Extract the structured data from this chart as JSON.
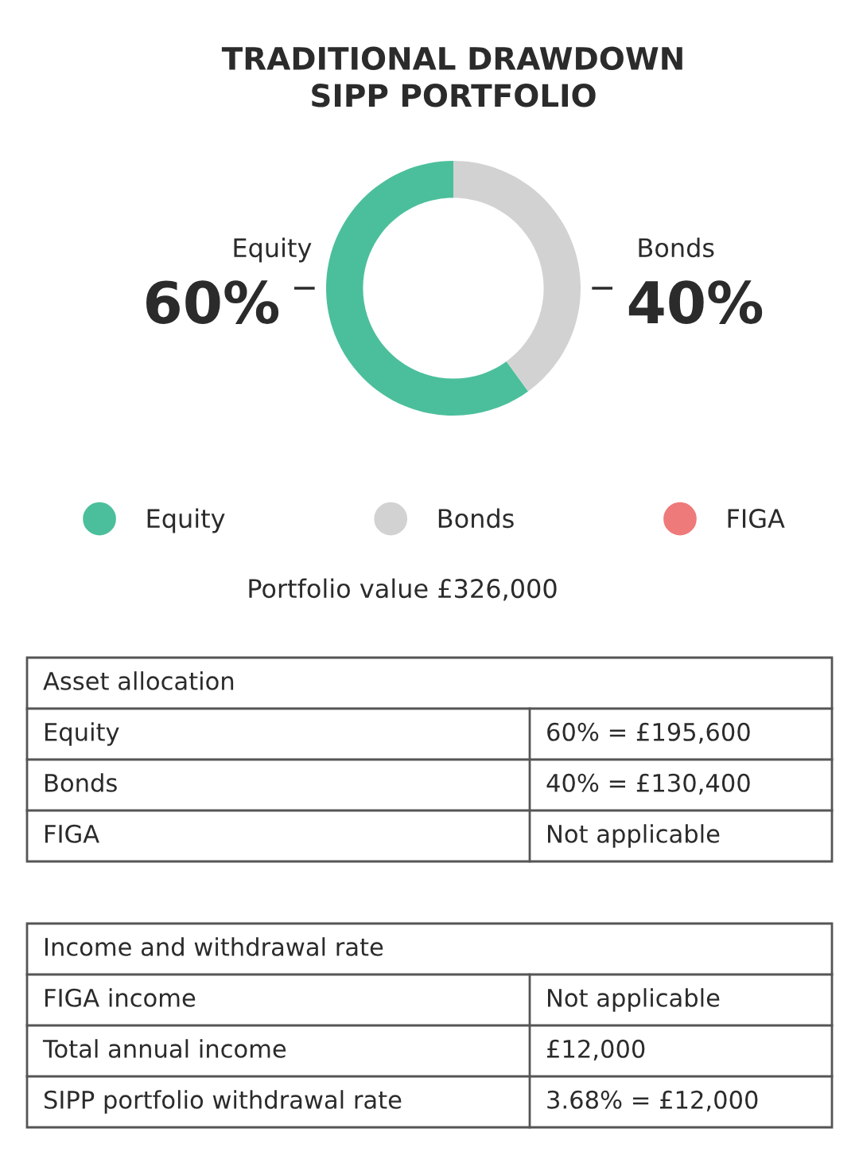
{
  "chart_data": [
    {
      "type": "donut",
      "title": "TRADITIONAL DRAWDOWN\nSIPP PORTFOLIO",
      "categories": [
        "Equity",
        "Bonds",
        "FIGA"
      ],
      "values": [
        60,
        40,
        0
      ],
      "colors": [
        "#4bbf9b",
        "#d3d2d2",
        "#ef7a7a"
      ],
      "value_labels": [
        "60%",
        "40%",
        null
      ],
      "legend": "bottom",
      "annotations": [
        "Portfolio value £326,000"
      ]
    },
    {
      "type": "other",
      "title": "Asset allocation",
      "annotations": [
        "Equity",
        "60% = £195,600",
        "Bonds",
        "40% = £130,400",
        "FIGA",
        "Not applicable"
      ]
    },
    {
      "type": "other",
      "title": "Income and withdrawal rate",
      "annotations": [
        "FIGA income",
        "Not applicable",
        "Total annual income",
        "£12,000",
        "SIPP portfolio withdrawal rate",
        "3.68% = £12,000"
      ]
    }
  ]
}
